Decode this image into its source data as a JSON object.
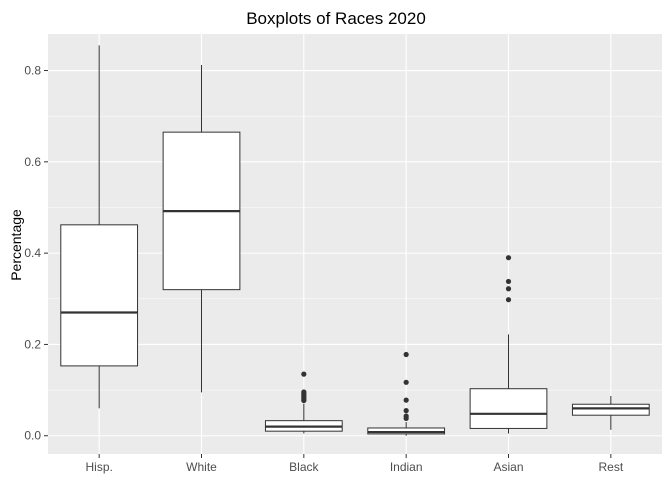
{
  "chart_data": {
    "type": "boxplot",
    "title": "Boxplots of Races 2020",
    "xlabel": "",
    "ylabel": "Percentage",
    "ylim": [
      -0.04,
      0.88
    ],
    "yticks": [
      "0.0",
      "0.2",
      "0.4",
      "0.6",
      "0.8"
    ],
    "grid": true,
    "categories": [
      "Hisp.",
      "White",
      "Black",
      "Indian",
      "Asian",
      "Rest"
    ],
    "boxes": [
      {
        "category": "Hisp.",
        "min": 0.06,
        "q1": 0.153,
        "median": 0.27,
        "q3": 0.462,
        "max": 0.855,
        "outliers": []
      },
      {
        "category": "White",
        "min": 0.095,
        "q1": 0.32,
        "median": 0.492,
        "q3": 0.665,
        "max": 0.812,
        "outliers": []
      },
      {
        "category": "Black",
        "min": 0.005,
        "q1": 0.01,
        "median": 0.02,
        "q3": 0.033,
        "max": 0.07,
        "outliers": [
          0.077,
          0.08,
          0.083,
          0.086,
          0.09,
          0.093,
          0.096,
          0.135
        ]
      },
      {
        "category": "Indian",
        "min": 0.0,
        "q1": 0.004,
        "median": 0.008,
        "q3": 0.017,
        "max": 0.03,
        "outliers": [
          0.038,
          0.043,
          0.055,
          0.078,
          0.117,
          0.178
        ]
      },
      {
        "category": "Asian",
        "min": 0.005,
        "q1": 0.016,
        "median": 0.048,
        "q3": 0.103,
        "max": 0.222,
        "outliers": [
          0.298,
          0.322,
          0.338,
          0.39
        ]
      },
      {
        "category": "Rest",
        "min": 0.013,
        "q1": 0.045,
        "median": 0.06,
        "q3": 0.069,
        "max": 0.087,
        "outliers": []
      }
    ]
  }
}
